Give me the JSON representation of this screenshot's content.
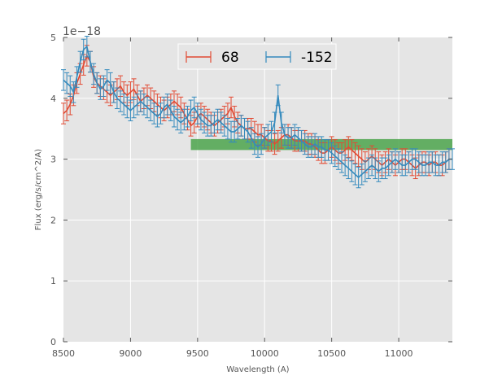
{
  "chart_data": {
    "type": "line",
    "title": "",
    "xlabel": "Wavelength (A)",
    "ylabel": "Flux (erg/s/cm^2/A)",
    "y_offset_label": "1e−18",
    "xlim": [
      8500,
      11400
    ],
    "ylim": [
      0,
      5
    ],
    "x_ticks": [
      8500,
      9000,
      9500,
      10000,
      10500,
      11000
    ],
    "x_tick_labels": [
      "8500",
      "9000",
      "9500",
      "10000",
      "10500",
      "11000"
    ],
    "y_ticks": [
      0,
      1,
      2,
      3,
      4,
      5
    ],
    "y_tick_labels": [
      "0",
      "1",
      "2",
      "3",
      "4",
      "5"
    ],
    "grid": true,
    "legend_position": "top-center",
    "series": [
      {
        "name": "68",
        "color": "#E24A33",
        "x_start": 8500,
        "x_step": 25,
        "error": 0.17,
        "values": [
          3.75,
          3.8,
          3.9,
          4.05,
          4.25,
          4.4,
          4.55,
          4.7,
          4.6,
          4.35,
          4.25,
          4.2,
          4.15,
          4.1,
          4.05,
          4.1,
          4.15,
          4.2,
          4.1,
          4.05,
          4.1,
          4.15,
          4.05,
          3.95,
          4.0,
          4.05,
          4.0,
          3.95,
          3.9,
          3.85,
          3.8,
          3.85,
          3.9,
          3.95,
          3.9,
          3.85,
          3.75,
          3.65,
          3.55,
          3.6,
          3.7,
          3.75,
          3.7,
          3.65,
          3.6,
          3.55,
          3.6,
          3.65,
          3.7,
          3.75,
          3.85,
          3.7,
          3.6,
          3.55,
          3.5,
          3.5,
          3.5,
          3.45,
          3.4,
          3.4,
          3.35,
          3.3,
          3.3,
          3.25,
          3.3,
          3.35,
          3.4,
          3.4,
          3.35,
          3.3,
          3.3,
          3.3,
          3.3,
          3.25,
          3.25,
          3.2,
          3.15,
          3.1,
          3.1,
          3.15,
          3.2,
          3.15,
          3.1,
          3.1,
          3.15,
          3.2,
          3.15,
          3.1,
          3.05,
          3.0,
          2.95,
          3.0,
          3.05,
          3.0,
          2.95,
          2.9,
          2.95,
          3.0,
          2.95,
          2.9,
          2.95,
          3.0,
          3.0,
          2.95,
          2.9,
          2.85,
          2.9,
          2.95,
          2.95,
          2.9,
          2.95,
          2.95,
          2.9,
          2.9,
          2.95,
          3.0
        ]
      },
      {
        "name": "-152",
        "color": "#348ABD",
        "x_start": 8500,
        "x_step": 25,
        "error": 0.17,
        "values": [
          4.3,
          4.25,
          4.2,
          4.1,
          4.35,
          4.6,
          4.8,
          4.85,
          4.6,
          4.4,
          4.25,
          4.15,
          4.2,
          4.3,
          4.25,
          4.1,
          4.0,
          3.95,
          3.9,
          3.85,
          3.8,
          3.85,
          3.9,
          3.95,
          3.9,
          3.85,
          3.8,
          3.75,
          3.7,
          3.75,
          3.85,
          3.9,
          3.8,
          3.7,
          3.65,
          3.6,
          3.65,
          3.7,
          3.8,
          3.85,
          3.75,
          3.65,
          3.6,
          3.55,
          3.55,
          3.6,
          3.65,
          3.6,
          3.55,
          3.5,
          3.45,
          3.45,
          3.5,
          3.55,
          3.5,
          3.45,
          3.35,
          3.25,
          3.2,
          3.25,
          3.35,
          3.4,
          3.45,
          3.6,
          4.05,
          3.6,
          3.4,
          3.35,
          3.35,
          3.4,
          3.35,
          3.3,
          3.25,
          3.2,
          3.2,
          3.25,
          3.2,
          3.2,
          3.15,
          3.15,
          3.1,
          3.05,
          3.0,
          2.95,
          2.9,
          2.85,
          2.8,
          2.75,
          2.7,
          2.75,
          2.8,
          2.85,
          2.9,
          2.85,
          2.8,
          2.85,
          2.85,
          2.9,
          2.95,
          3.0,
          2.95,
          2.9,
          2.9,
          2.95,
          3.0,
          3.0,
          2.95,
          2.9,
          2.9,
          2.95,
          2.95,
          2.9,
          2.9,
          2.95,
          2.95,
          3.0,
          3.0
        ]
      }
    ],
    "band": {
      "color": "#4CA54C",
      "x_range": [
        9450,
        11400
      ],
      "y_range": [
        3.15,
        3.33
      ]
    }
  }
}
